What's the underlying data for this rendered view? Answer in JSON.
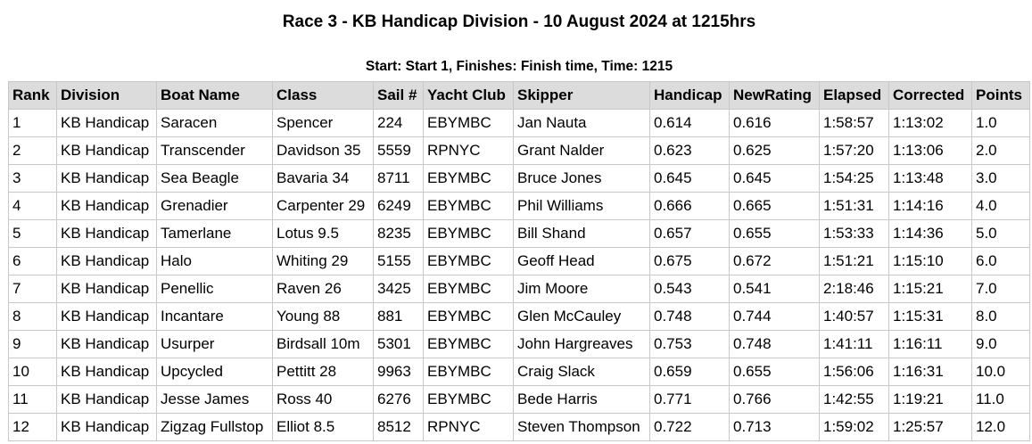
{
  "header": {
    "title": "Race 3 - KB Handicap Division - 10 August 2024 at 1215hrs",
    "subtitle": "Start: Start 1, Finishes: Finish time, Time: 1215"
  },
  "table": {
    "headers": [
      "Rank",
      "Division",
      "Boat Name",
      "Class",
      "Sail #",
      "Yacht Club",
      "Skipper",
      "Handicap",
      "NewRating",
      "Elapsed",
      "Corrected",
      "Points"
    ],
    "rows": [
      [
        "1",
        "KB Handicap",
        "Saracen",
        "Spencer",
        "224",
        "EBYMBC",
        "Jan Nauta",
        "0.614",
        "0.616",
        "1:58:57",
        "1:13:02",
        "1.0"
      ],
      [
        "2",
        "KB Handicap",
        "Transcender",
        "Davidson 35",
        "5559",
        "RPNYC",
        "Grant Nalder",
        "0.623",
        "0.625",
        "1:57:20",
        "1:13:06",
        "2.0"
      ],
      [
        "3",
        "KB Handicap",
        "Sea Beagle",
        "Bavaria 34",
        "8711",
        "EBYMBC",
        "Bruce Jones",
        "0.645",
        "0.645",
        "1:54:25",
        "1:13:48",
        "3.0"
      ],
      [
        "4",
        "KB Handicap",
        "Grenadier",
        "Carpenter 29",
        "6249",
        "EBYMBC",
        "Phil Williams",
        "0.666",
        "0.665",
        "1:51:31",
        "1:14:16",
        "4.0"
      ],
      [
        "5",
        "KB Handicap",
        "Tamerlane",
        "Lotus 9.5",
        "8235",
        "EBYMBC",
        "Bill Shand",
        "0.657",
        "0.655",
        "1:53:33",
        "1:14:36",
        "5.0"
      ],
      [
        "6",
        "KB Handicap",
        "Halo",
        "Whiting 29",
        "5155",
        "EBYMBC",
        "Geoff Head",
        "0.675",
        "0.672",
        "1:51:21",
        "1:15:10",
        "6.0"
      ],
      [
        "7",
        "KB Handicap",
        "Penellic",
        "Raven 26",
        "3425",
        "EBYMBC",
        "Jim Moore",
        "0.543",
        "0.541",
        "2:18:46",
        "1:15:21",
        "7.0"
      ],
      [
        "8",
        "KB Handicap",
        "Incantare",
        "Young 88",
        "881",
        "EBYMBC",
        "Glen McCauley",
        "0.748",
        "0.744",
        "1:40:57",
        "1:15:31",
        "8.0"
      ],
      [
        "9",
        "KB Handicap",
        "Usurper",
        "Birdsall 10m",
        "5301",
        "EBYMBC",
        "John Hargreaves",
        "0.753",
        "0.748",
        "1:41:11",
        "1:16:11",
        "9.0"
      ],
      [
        "10",
        "KB Handicap",
        "Upcycled",
        "Pettitt 28",
        "9963",
        "EBYMBC",
        "Craig Slack",
        "0.659",
        "0.655",
        "1:56:06",
        "1:16:31",
        "10.0"
      ],
      [
        "11",
        "KB Handicap",
        "Jesse James",
        "Ross 40",
        "6276",
        "EBYMBC",
        "Bede Harris",
        "0.771",
        "0.766",
        "1:42:55",
        "1:19:21",
        "11.0"
      ],
      [
        "12",
        "KB Handicap",
        "Zigzag Fullstop",
        "Elliot 8.5",
        "8512",
        "RPNYC",
        "Steven Thompson",
        "0.722",
        "0.713",
        "1:59:02",
        "1:25:57",
        "12.0"
      ]
    ]
  }
}
